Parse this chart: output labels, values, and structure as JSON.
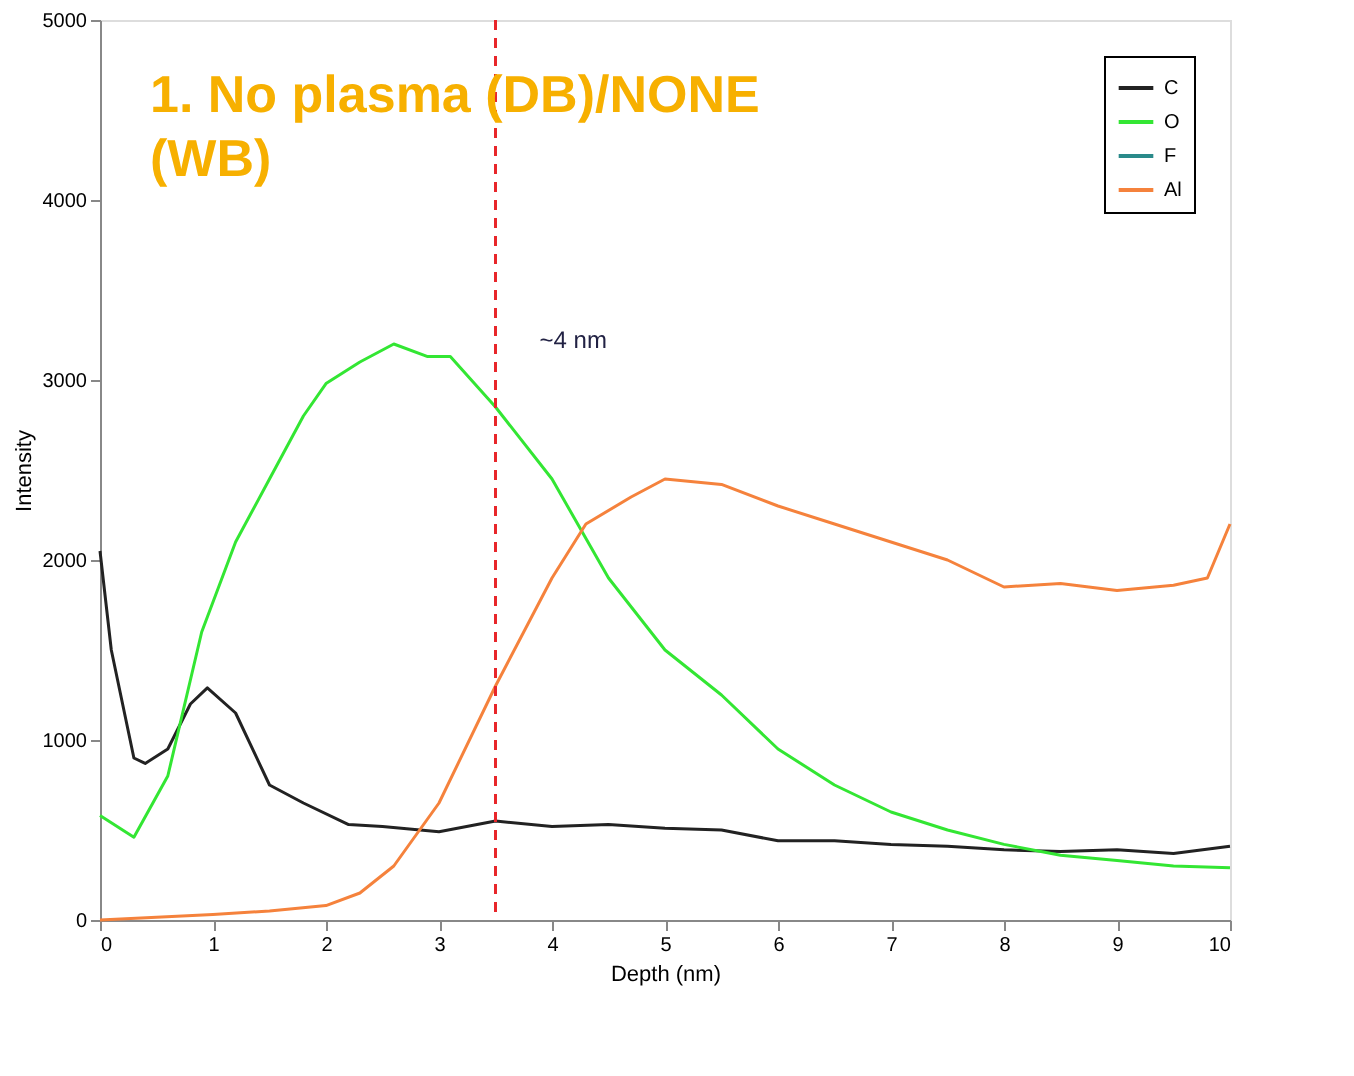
{
  "chart_data": {
    "type": "line",
    "xlabel": "Depth (nm)",
    "ylabel": "Intensity",
    "annotations": [
      "1. No plasma (DB)/NONE (WB)"
    ],
    "xlim": [
      0,
      10
    ],
    "xticks": [
      0,
      1,
      2,
      3,
      4,
      5,
      6,
      7,
      8,
      9,
      10
    ],
    "ylim": [
      0,
      5000
    ],
    "yticks": [
      0,
      1000,
      2000,
      3000,
      4000,
      5000
    ],
    "grid": false,
    "legend": "top right",
    "line_style": "solid",
    "marker": "none",
    "ref_lines": [
      {
        "axis": "x",
        "value": 3.5,
        "label": "~4 nm",
        "color": "#e8262a",
        "line_style": "dashed"
      }
    ],
    "series": [
      {
        "name": "C",
        "color": "#222222",
        "x": [
          0,
          0.1,
          0.3,
          0.4,
          0.6,
          0.8,
          0.95,
          1.2,
          1.5,
          1.8,
          2.2,
          2.5,
          3,
          3.5,
          4,
          4.5,
          5,
          5.5,
          6,
          6.5,
          7,
          7.5,
          8,
          8.5,
          9,
          9.5,
          10
        ],
        "values": [
          2050,
          1500,
          900,
          870,
          950,
          1200,
          1290,
          1150,
          750,
          650,
          530,
          520,
          490,
          550,
          520,
          530,
          510,
          500,
          440,
          440,
          420,
          410,
          390,
          380,
          390,
          370,
          410
        ]
      },
      {
        "name": "O",
        "color": "#33e633",
        "x": [
          0,
          0.3,
          0.6,
          0.9,
          1.2,
          1.5,
          1.8,
          2,
          2.3,
          2.6,
          2.9,
          3.1,
          3.5,
          4,
          4.5,
          5,
          5.5,
          6,
          6.5,
          7,
          7.5,
          8,
          8.5,
          9,
          9.5,
          10
        ],
        "values": [
          580,
          460,
          800,
          1600,
          2100,
          2450,
          2800,
          2980,
          3100,
          3200,
          3130,
          3130,
          2850,
          2450,
          1900,
          1500,
          1250,
          950,
          750,
          600,
          500,
          420,
          360,
          330,
          300,
          290
        ]
      },
      {
        "name": "F",
        "color": "#2a8a8a"
      },
      {
        "name": "Al",
        "color": "#f5823c",
        "x": [
          0,
          1,
          1.5,
          2,
          2.3,
          2.6,
          3,
          3.5,
          4,
          4.3,
          4.7,
          5,
          5.5,
          6,
          6.5,
          7,
          7.5,
          8,
          8.5,
          9,
          9.5,
          9.8,
          10
        ],
        "values": [
          0,
          30,
          50,
          80,
          150,
          300,
          650,
          1300,
          1900,
          2200,
          2350,
          2450,
          2420,
          2300,
          2200,
          2100,
          2000,
          1850,
          1870,
          1830,
          1860,
          1900,
          2200
        ]
      }
    ]
  }
}
